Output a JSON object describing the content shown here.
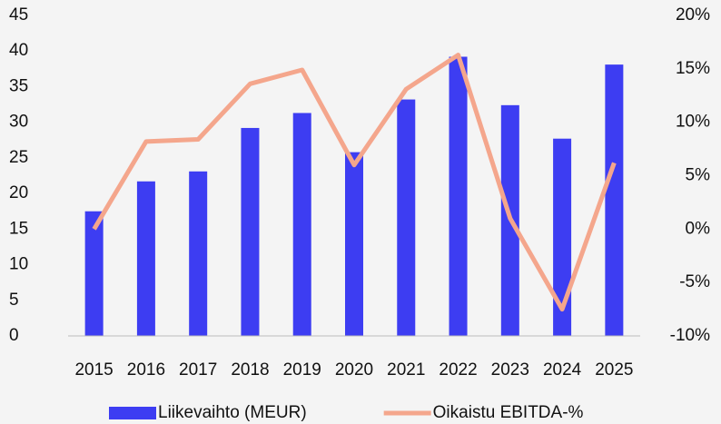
{
  "chart_data": {
    "type": "bar_line",
    "categories": [
      "2015",
      "2016",
      "2017",
      "2018",
      "2019",
      "2020",
      "2021",
      "2022",
      "2023",
      "2024",
      "2025"
    ],
    "series": [
      {
        "name": "Liikevaihto (MEUR)",
        "type": "bar",
        "color": "#3d3df2",
        "values": [
          17.5,
          21.7,
          23.1,
          29.2,
          31.3,
          25.8,
          33.2,
          39.2,
          32.4,
          27.7,
          38.1
        ]
      },
      {
        "name": "Oikaistu EBITDA-%",
        "type": "line",
        "axis": "y2",
        "color": "#f4a68c",
        "values": [
          0,
          8.2,
          8.4,
          13.6,
          14.9,
          6.0,
          13.1,
          16.3,
          1.0,
          -7.5,
          6.2
        ]
      }
    ],
    "ylim": [
      0,
      45
    ],
    "yticks": [
      0,
      5,
      10,
      15,
      20,
      25,
      30,
      35,
      40,
      45
    ],
    "y2lim": [
      -10,
      20
    ],
    "y2ticks": [
      {
        "value": -10,
        "label": "-10%"
      },
      {
        "value": -5,
        "label": "-5%"
      },
      {
        "value": 0,
        "label": "0%"
      },
      {
        "value": 5,
        "label": "5%"
      },
      {
        "value": 10,
        "label": "10%"
      },
      {
        "value": 15,
        "label": "15%"
      },
      {
        "value": 20,
        "label": "20%"
      }
    ],
    "legend": "bottom"
  }
}
